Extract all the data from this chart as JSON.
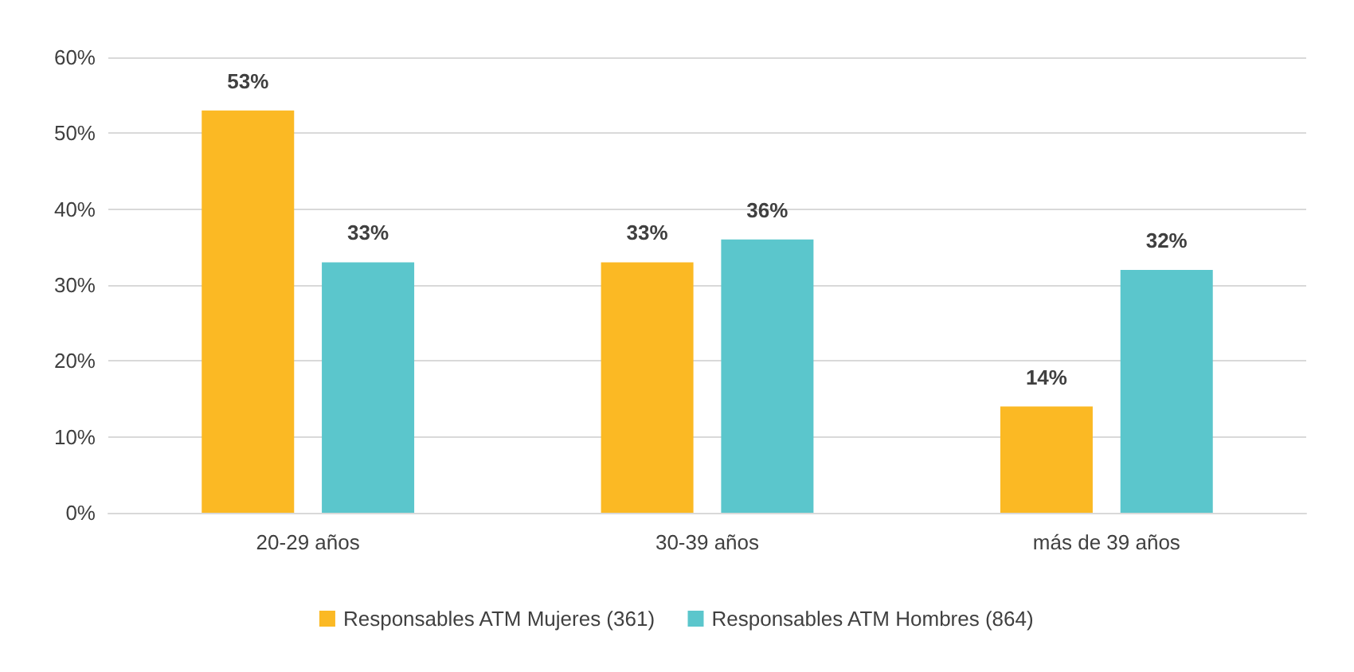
{
  "chart_data": {
    "type": "bar",
    "categories": [
      "20-29 años",
      "30-39 años",
      "más de 39 años"
    ],
    "series": [
      {
        "name": "Responsables ATM Mujeres (361)",
        "color": "#fbb924",
        "values": [
          53,
          33,
          14
        ],
        "value_labels": [
          "53%",
          "33%",
          "14%"
        ]
      },
      {
        "name": "Responsables ATM Hombres (864)",
        "color": "#5bc6cc",
        "values": [
          33,
          36,
          32
        ],
        "value_labels": [
          "33%",
          "36%",
          "32%"
        ]
      }
    ],
    "ylim": [
      0,
      60
    ],
    "yticks": [
      {
        "value": 0,
        "label": "0%"
      },
      {
        "value": 10,
        "label": "10%"
      },
      {
        "value": 20,
        "label": "20%"
      },
      {
        "value": 30,
        "label": "30%"
      },
      {
        "value": 40,
        "label": "40%"
      },
      {
        "value": 50,
        "label": "50%"
      },
      {
        "value": 60,
        "label": "60%"
      }
    ],
    "grid": "y",
    "legend": "bottom"
  }
}
